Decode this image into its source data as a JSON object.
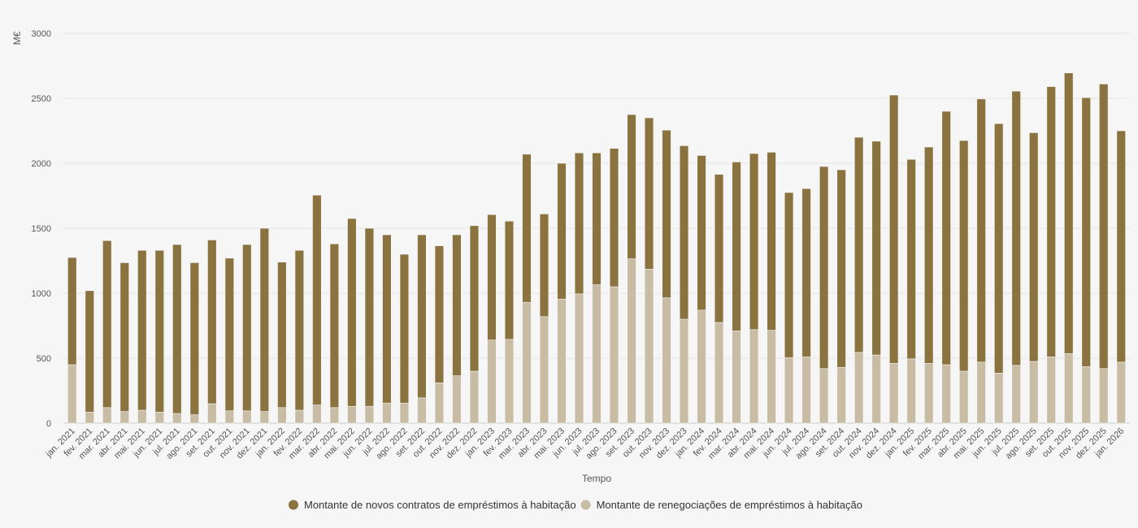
{
  "chart_data": {
    "type": "bar",
    "stacked": true,
    "ylabel": "M€",
    "xlabel": "Tempo",
    "ylim": [
      0,
      3000
    ],
    "yticks": [
      0,
      500,
      1000,
      1500,
      2000,
      2500,
      3000
    ],
    "grid": true,
    "legend": "bottom",
    "categories": [
      "jan. 2021",
      "fev. 2021",
      "mar. 2021",
      "abr. 2021",
      "mai. 2021",
      "jun. 2021",
      "jul. 2021",
      "ago. 2021",
      "set. 2021",
      "out. 2021",
      "nov. 2021",
      "dez. 2021",
      "jan. 2022",
      "fev. 2022",
      "mar. 2022",
      "abr. 2022",
      "mai. 2022",
      "jun. 2022",
      "jul. 2022",
      "ago. 2022",
      "set. 2022",
      "out. 2022",
      "nov. 2022",
      "dez. 2022",
      "jan. 2023",
      "fev. 2023",
      "mar. 2023",
      "abr. 2023",
      "mai. 2023",
      "jun. 2023",
      "jul. 2023",
      "ago. 2023",
      "set. 2023",
      "out. 2023",
      "nov. 2023",
      "dez. 2023",
      "jan. 2024",
      "fev. 2024",
      "mar. 2024",
      "abr. 2024",
      "mai. 2024",
      "jun. 2024",
      "jul. 2024",
      "ago. 2024",
      "set. 2024",
      "out. 2024",
      "nov. 2024",
      "dez. 2024",
      "jan. 2025",
      "fev. 2025",
      "mar. 2025",
      "abr. 2025",
      "mai. 2025",
      "jun. 2025",
      "jul. 2025",
      "ago. 2025",
      "set. 2025",
      "out. 2025",
      "nov. 2025",
      "dez. 2025",
      "jan. 2026"
    ],
    "series": [
      {
        "name": "Montante de renegociações de empréstimos à habitação",
        "color": "#c8bda4",
        "values": [
          450,
          85,
          120,
          90,
          100,
          85,
          75,
          65,
          150,
          95,
          95,
          90,
          120,
          100,
          140,
          120,
          130,
          130,
          155,
          155,
          195,
          310,
          365,
          400,
          640,
          645,
          930,
          820,
          955,
          995,
          1065,
          1050,
          1265,
          1185,
          965,
          800,
          870,
          775,
          710,
          720,
          715,
          505,
          510,
          420,
          430,
          545,
          525,
          460,
          495,
          460,
          450,
          400,
          470,
          385,
          445,
          475,
          510,
          535,
          435,
          420,
          470
        ]
      },
      {
        "name": "Montante de novos contratos de empréstimos à habitação",
        "color": "#8b733f",
        "values": [
          825,
          935,
          1285,
          1145,
          1230,
          1245,
          1300,
          1170,
          1260,
          1175,
          1280,
          1410,
          1120,
          1230,
          1615,
          1260,
          1445,
          1370,
          1295,
          1145,
          1255,
          1055,
          1085,
          1120,
          965,
          910,
          1140,
          790,
          1045,
          1085,
          1015,
          1065,
          1110,
          1165,
          1290,
          1335,
          1190,
          1140,
          1300,
          1355,
          1370,
          1270,
          1295,
          1555,
          1520,
          1655,
          1645,
          2065,
          1535,
          1665,
          1950,
          1775,
          2025,
          1920,
          2110,
          1760,
          2080,
          2160,
          2070,
          2190,
          1780
        ]
      }
    ],
    "legend_order": [
      1,
      0
    ]
  }
}
